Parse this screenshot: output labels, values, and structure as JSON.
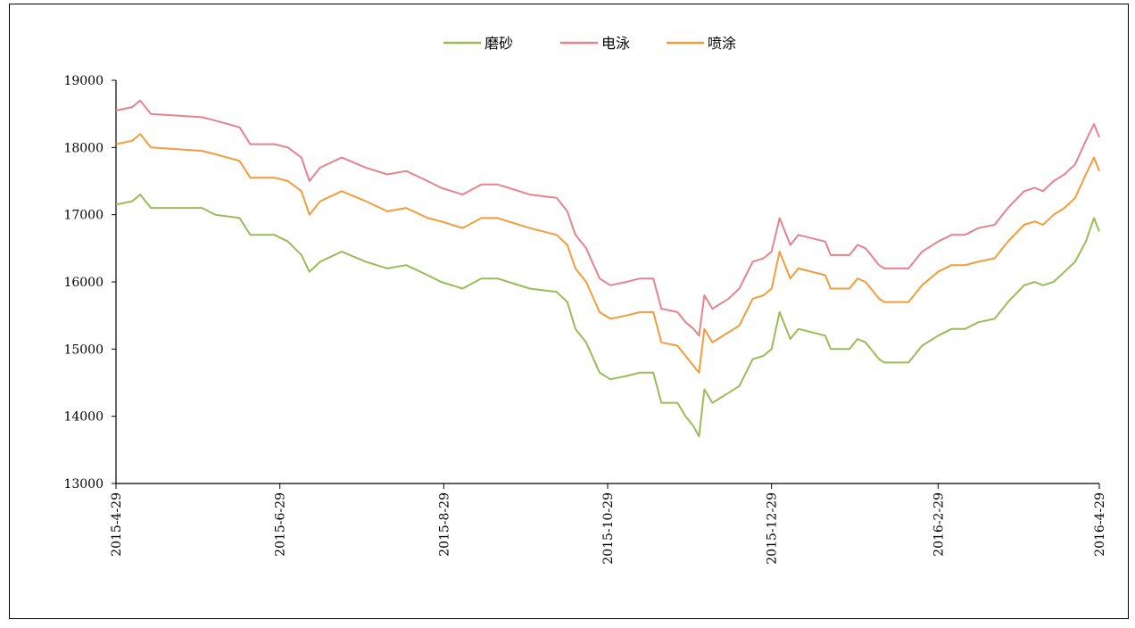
{
  "chart_data": {
    "type": "line",
    "title": "",
    "xlabel": "",
    "ylabel": "",
    "ylim": [
      13000,
      19000
    ],
    "yticks": [
      13000,
      14000,
      15000,
      16000,
      17000,
      18000,
      19000
    ],
    "xlim": [
      "2015-04-29",
      "2016-04-29"
    ],
    "xticks": [
      "2015-4-29",
      "2015-6-29",
      "2015-8-29",
      "2015-10-29",
      "2015-12-29",
      "2016-2-29",
      "2016-4-29"
    ],
    "legend": {
      "placement": "top-center",
      "entries": [
        "磨砂",
        "电泳",
        "喷涂"
      ]
    },
    "grid": false,
    "series": [
      {
        "name": "磨砂",
        "color": "#9bbb59",
        "points": [
          [
            "2015-04-29",
            17150
          ],
          [
            "2015-05-05",
            17200
          ],
          [
            "2015-05-08",
            17300
          ],
          [
            "2015-05-12",
            17100
          ],
          [
            "2015-05-31",
            17100
          ],
          [
            "2015-06-05",
            17000
          ],
          [
            "2015-06-14",
            16950
          ],
          [
            "2015-06-18",
            16700
          ],
          [
            "2015-06-27",
            16700
          ],
          [
            "2015-07-02",
            16600
          ],
          [
            "2015-07-07",
            16400
          ],
          [
            "2015-07-10",
            16150
          ],
          [
            "2015-07-14",
            16300
          ],
          [
            "2015-07-22",
            16450
          ],
          [
            "2015-07-31",
            16300
          ],
          [
            "2015-08-08",
            16200
          ],
          [
            "2015-08-15",
            16250
          ],
          [
            "2015-08-23",
            16100
          ],
          [
            "2015-08-28",
            16000
          ],
          [
            "2015-09-05",
            15900
          ],
          [
            "2015-09-12",
            16050
          ],
          [
            "2015-09-18",
            16050
          ],
          [
            "2015-09-22",
            16000
          ],
          [
            "2015-09-30",
            15900
          ],
          [
            "2015-10-10",
            15850
          ],
          [
            "2015-10-14",
            15700
          ],
          [
            "2015-10-17",
            15300
          ],
          [
            "2015-10-21",
            15100
          ],
          [
            "2015-10-26",
            14650
          ],
          [
            "2015-10-30",
            14550
          ],
          [
            "2015-11-05",
            14600
          ],
          [
            "2015-11-10",
            14650
          ],
          [
            "2015-11-15",
            14650
          ],
          [
            "2015-11-18",
            14200
          ],
          [
            "2015-11-24",
            14200
          ],
          [
            "2015-11-27",
            14000
          ],
          [
            "2015-11-30",
            13850
          ],
          [
            "2015-12-02",
            13700
          ],
          [
            "2015-12-04",
            14400
          ],
          [
            "2015-12-07",
            14200
          ],
          [
            "2015-12-13",
            14350
          ],
          [
            "2015-12-17",
            14450
          ],
          [
            "2015-12-22",
            14850
          ],
          [
            "2015-12-26",
            14900
          ],
          [
            "2015-12-29",
            15000
          ],
          [
            "2016-01-01",
            15550
          ],
          [
            "2016-01-05",
            15150
          ],
          [
            "2016-01-08",
            15300
          ],
          [
            "2016-01-18",
            15200
          ],
          [
            "2016-01-20",
            15000
          ],
          [
            "2016-01-27",
            15000
          ],
          [
            "2016-01-30",
            15150
          ],
          [
            "2016-02-02",
            15100
          ],
          [
            "2016-02-07",
            14850
          ],
          [
            "2016-02-09",
            14800
          ],
          [
            "2016-02-18",
            14800
          ],
          [
            "2016-02-23",
            15050
          ],
          [
            "2016-02-29",
            15200
          ],
          [
            "2016-03-05",
            15300
          ],
          [
            "2016-03-10",
            15300
          ],
          [
            "2016-03-15",
            15400
          ],
          [
            "2016-03-21",
            15450
          ],
          [
            "2016-03-26",
            15700
          ],
          [
            "2016-04-01",
            15950
          ],
          [
            "2016-04-05",
            16000
          ],
          [
            "2016-04-08",
            15950
          ],
          [
            "2016-04-12",
            16000
          ],
          [
            "2016-04-16",
            16150
          ],
          [
            "2016-04-20",
            16300
          ],
          [
            "2016-04-24",
            16600
          ],
          [
            "2016-04-27",
            16950
          ],
          [
            "2016-04-29",
            16750
          ]
        ]
      },
      {
        "name": "电泳",
        "color": "#e6838f",
        "points": [
          [
            "2015-04-29",
            18550
          ],
          [
            "2015-05-05",
            18600
          ],
          [
            "2015-05-08",
            18700
          ],
          [
            "2015-05-12",
            18500
          ],
          [
            "2015-05-31",
            18450
          ],
          [
            "2015-06-05",
            18400
          ],
          [
            "2015-06-14",
            18300
          ],
          [
            "2015-06-18",
            18050
          ],
          [
            "2015-06-27",
            18050
          ],
          [
            "2015-07-02",
            18000
          ],
          [
            "2015-07-07",
            17850
          ],
          [
            "2015-07-10",
            17500
          ],
          [
            "2015-07-14",
            17700
          ],
          [
            "2015-07-22",
            17850
          ],
          [
            "2015-07-31",
            17700
          ],
          [
            "2015-08-08",
            17600
          ],
          [
            "2015-08-15",
            17650
          ],
          [
            "2015-08-23",
            17500
          ],
          [
            "2015-08-28",
            17400
          ],
          [
            "2015-09-05",
            17300
          ],
          [
            "2015-09-12",
            17450
          ],
          [
            "2015-09-18",
            17450
          ],
          [
            "2015-09-22",
            17400
          ],
          [
            "2015-09-30",
            17300
          ],
          [
            "2015-10-10",
            17250
          ],
          [
            "2015-10-14",
            17050
          ],
          [
            "2015-10-17",
            16700
          ],
          [
            "2015-10-21",
            16500
          ],
          [
            "2015-10-26",
            16050
          ],
          [
            "2015-10-30",
            15950
          ],
          [
            "2015-11-05",
            16000
          ],
          [
            "2015-11-10",
            16050
          ],
          [
            "2015-11-15",
            16050
          ],
          [
            "2015-11-18",
            15600
          ],
          [
            "2015-11-24",
            15550
          ],
          [
            "2015-11-27",
            15400
          ],
          [
            "2015-11-30",
            15300
          ],
          [
            "2015-12-02",
            15200
          ],
          [
            "2015-12-04",
            15800
          ],
          [
            "2015-12-07",
            15600
          ],
          [
            "2015-12-13",
            15750
          ],
          [
            "2015-12-17",
            15900
          ],
          [
            "2015-12-22",
            16300
          ],
          [
            "2015-12-26",
            16350
          ],
          [
            "2015-12-29",
            16450
          ],
          [
            "2016-01-01",
            16950
          ],
          [
            "2016-01-05",
            16550
          ],
          [
            "2016-01-08",
            16700
          ],
          [
            "2016-01-18",
            16600
          ],
          [
            "2016-01-20",
            16400
          ],
          [
            "2016-01-27",
            16400
          ],
          [
            "2016-01-30",
            16550
          ],
          [
            "2016-02-02",
            16500
          ],
          [
            "2016-02-07",
            16250
          ],
          [
            "2016-02-09",
            16200
          ],
          [
            "2016-02-18",
            16200
          ],
          [
            "2016-02-23",
            16450
          ],
          [
            "2016-02-29",
            16600
          ],
          [
            "2016-03-05",
            16700
          ],
          [
            "2016-03-10",
            16700
          ],
          [
            "2016-03-15",
            16800
          ],
          [
            "2016-03-21",
            16850
          ],
          [
            "2016-03-26",
            17100
          ],
          [
            "2016-04-01",
            17350
          ],
          [
            "2016-04-05",
            17400
          ],
          [
            "2016-04-08",
            17350
          ],
          [
            "2016-04-12",
            17500
          ],
          [
            "2016-04-16",
            17600
          ],
          [
            "2016-04-20",
            17750
          ],
          [
            "2016-04-24",
            18100
          ],
          [
            "2016-04-27",
            18350
          ],
          [
            "2016-04-29",
            18150
          ]
        ]
      },
      {
        "name": "喷涂",
        "color": "#f29c3e",
        "points": [
          [
            "2015-04-29",
            18050
          ],
          [
            "2015-05-05",
            18100
          ],
          [
            "2015-05-08",
            18200
          ],
          [
            "2015-05-12",
            18000
          ],
          [
            "2015-05-31",
            17950
          ],
          [
            "2015-06-05",
            17900
          ],
          [
            "2015-06-14",
            17800
          ],
          [
            "2015-06-18",
            17550
          ],
          [
            "2015-06-27",
            17550
          ],
          [
            "2015-07-02",
            17500
          ],
          [
            "2015-07-07",
            17350
          ],
          [
            "2015-07-10",
            17000
          ],
          [
            "2015-07-14",
            17200
          ],
          [
            "2015-07-22",
            17350
          ],
          [
            "2015-07-31",
            17200
          ],
          [
            "2015-08-08",
            17050
          ],
          [
            "2015-08-15",
            17100
          ],
          [
            "2015-08-23",
            16950
          ],
          [
            "2015-08-28",
            16900
          ],
          [
            "2015-09-05",
            16800
          ],
          [
            "2015-09-12",
            16950
          ],
          [
            "2015-09-18",
            16950
          ],
          [
            "2015-09-22",
            16900
          ],
          [
            "2015-09-30",
            16800
          ],
          [
            "2015-10-10",
            16700
          ],
          [
            "2015-10-14",
            16550
          ],
          [
            "2015-10-17",
            16200
          ],
          [
            "2015-10-21",
            16000
          ],
          [
            "2015-10-26",
            15550
          ],
          [
            "2015-10-30",
            15450
          ],
          [
            "2015-11-05",
            15500
          ],
          [
            "2015-11-10",
            15550
          ],
          [
            "2015-11-15",
            15550
          ],
          [
            "2015-11-18",
            15100
          ],
          [
            "2015-11-24",
            15050
          ],
          [
            "2015-11-27",
            14900
          ],
          [
            "2015-11-30",
            14750
          ],
          [
            "2015-12-02",
            14650
          ],
          [
            "2015-12-04",
            15300
          ],
          [
            "2015-12-07",
            15100
          ],
          [
            "2015-12-13",
            15250
          ],
          [
            "2015-12-17",
            15350
          ],
          [
            "2015-12-22",
            15750
          ],
          [
            "2015-12-26",
            15800
          ],
          [
            "2015-12-29",
            15900
          ],
          [
            "2016-01-01",
            16450
          ],
          [
            "2016-01-05",
            16050
          ],
          [
            "2016-01-08",
            16200
          ],
          [
            "2016-01-18",
            16100
          ],
          [
            "2016-01-20",
            15900
          ],
          [
            "2016-01-27",
            15900
          ],
          [
            "2016-01-30",
            16050
          ],
          [
            "2016-02-02",
            16000
          ],
          [
            "2016-02-07",
            15750
          ],
          [
            "2016-02-09",
            15700
          ],
          [
            "2016-02-18",
            15700
          ],
          [
            "2016-02-23",
            15950
          ],
          [
            "2016-02-29",
            16150
          ],
          [
            "2016-03-05",
            16250
          ],
          [
            "2016-03-10",
            16250
          ],
          [
            "2016-03-15",
            16300
          ],
          [
            "2016-03-21",
            16350
          ],
          [
            "2016-03-26",
            16600
          ],
          [
            "2016-04-01",
            16850
          ],
          [
            "2016-04-05",
            16900
          ],
          [
            "2016-04-08",
            16850
          ],
          [
            "2016-04-12",
            17000
          ],
          [
            "2016-04-16",
            17100
          ],
          [
            "2016-04-20",
            17250
          ],
          [
            "2016-04-24",
            17600
          ],
          [
            "2016-04-27",
            17850
          ],
          [
            "2016-04-29",
            17650
          ]
        ]
      }
    ]
  }
}
